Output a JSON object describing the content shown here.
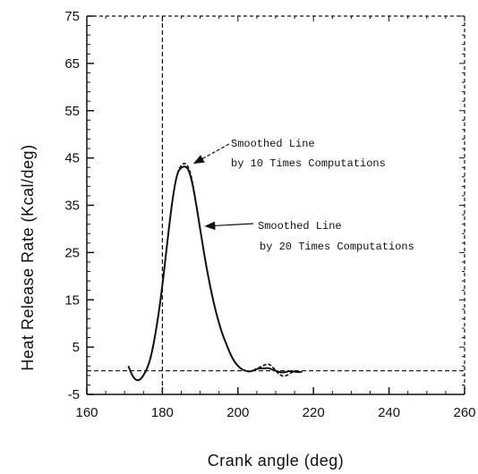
{
  "chart_data": {
    "type": "line",
    "xlabel": "Crank angle (deg)",
    "ylabel": "Heat Release Rate (Kcal/deg)",
    "xlim": [
      160,
      260
    ],
    "ylim": [
      -5,
      75
    ],
    "x_ticks": [
      160,
      180,
      200,
      220,
      240,
      260
    ],
    "y_ticks": [
      -5,
      5,
      15,
      25,
      35,
      45,
      55,
      65,
      75
    ],
    "grid": false,
    "reference_lines": [
      {
        "orientation": "vertical",
        "value": 180,
        "style": "dashed"
      },
      {
        "orientation": "horizontal",
        "value": 0,
        "style": "dashed"
      }
    ],
    "series": [
      {
        "name": "Smoothed Line by 10 Times Computations",
        "style": "dashed",
        "x": [
          171,
          172,
          173,
          174,
          175,
          176,
          177,
          178,
          179,
          180,
          181,
          182,
          183,
          184,
          185,
          186,
          187,
          188,
          189,
          190,
          191,
          192,
          193,
          194,
          195,
          196,
          197,
          198,
          199,
          200,
          201,
          202,
          203,
          204,
          205,
          206,
          207,
          208,
          209,
          210,
          211,
          212,
          213,
          214,
          215,
          216,
          217
        ],
        "y": [
          1.0,
          -1.0,
          -2.0,
          -2.0,
          -1.0,
          0.5,
          3.0,
          7.0,
          12.0,
          18.0,
          25.0,
          32.0,
          38.0,
          42.0,
          43.5,
          44.0,
          43.0,
          40.0,
          35.0,
          30.0,
          25.0,
          20.5,
          16.5,
          13.0,
          10.0,
          7.5,
          5.5,
          3.5,
          2.0,
          1.0,
          0.3,
          0.0,
          -0.2,
          0.0,
          0.5,
          0.8,
          1.2,
          1.5,
          1.0,
          0.0,
          -0.8,
          -1.2,
          -1.0,
          -0.4,
          -0.2,
          -0.3,
          -0.2
        ]
      },
      {
        "name": "Smoothed Line by 20 Times Computations",
        "style": "solid",
        "x": [
          171,
          172,
          173,
          174,
          175,
          176,
          177,
          178,
          179,
          180,
          181,
          182,
          183,
          184,
          185,
          186,
          187,
          188,
          189,
          190,
          191,
          192,
          193,
          194,
          195,
          196,
          197,
          198,
          199,
          200,
          201,
          202,
          203,
          204,
          205,
          206,
          207,
          208,
          209,
          210,
          211,
          212,
          213,
          214,
          215,
          216,
          217
        ],
        "y": [
          1.0,
          -1.0,
          -2.0,
          -2.0,
          -1.0,
          0.5,
          3.0,
          7.0,
          12.0,
          18.0,
          25.0,
          32.0,
          38.0,
          42.0,
          43.0,
          43.3,
          42.5,
          39.5,
          35.0,
          30.0,
          25.0,
          20.5,
          16.5,
          13.0,
          10.0,
          7.5,
          5.5,
          3.5,
          2.0,
          1.0,
          0.3,
          0.0,
          -0.2,
          0.0,
          0.4,
          0.5,
          0.5,
          0.6,
          0.3,
          0.0,
          -0.3,
          -0.4,
          -0.2,
          0.0,
          -0.2,
          -0.3,
          -0.2
        ]
      }
    ],
    "annotations": [
      {
        "line1": "Smoothed Line",
        "line2": "by 10 Times Computations",
        "points_to": {
          "x": 187,
          "y": 43.5
        }
      },
      {
        "line1": "Smoothed Line",
        "line2": "by 20 Times Computations",
        "points_to": {
          "x": 190,
          "y": 30
        }
      }
    ]
  }
}
